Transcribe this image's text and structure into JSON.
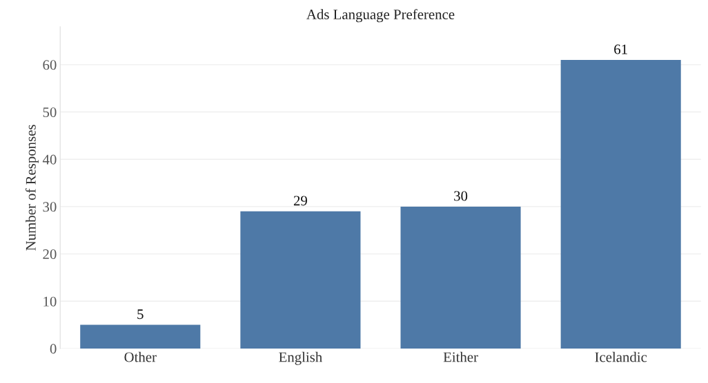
{
  "chart_data": {
    "type": "bar",
    "title": "Ads Language Preference",
    "ylabel": "Number of Responses",
    "categories": [
      "Other",
      "English",
      "Either",
      "Icelandic"
    ],
    "values": [
      5,
      29,
      30,
      61
    ],
    "color": "#4e79a7",
    "ylim": [
      0,
      68
    ],
    "yticks": [
      0,
      10,
      20,
      30,
      40,
      50,
      60
    ],
    "grid": "y",
    "data_labels": true
  }
}
